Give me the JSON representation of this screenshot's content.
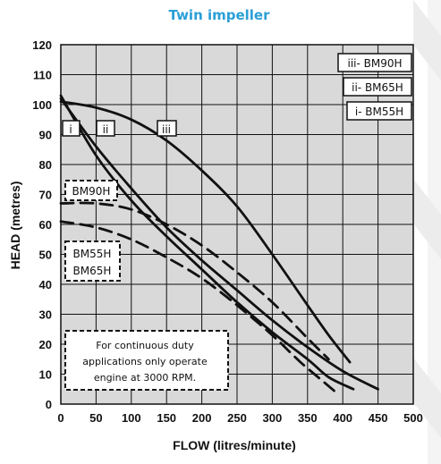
{
  "chart_data": {
    "type": "line",
    "title": "Twin impeller",
    "xlabel": "FLOW (litres/minute)",
    "ylabel": "HEAD (metres)",
    "xlim": [
      0,
      500
    ],
    "ylim": [
      0,
      120
    ],
    "xticks": [
      "0",
      "50",
      "100",
      "150",
      "200",
      "250",
      "300",
      "350",
      "400",
      "450",
      "500"
    ],
    "yticks": [
      "0",
      "10",
      "20",
      "30",
      "40",
      "50",
      "60",
      "70",
      "80",
      "90",
      "100",
      "110",
      "120"
    ],
    "grid": true,
    "legend_position": "top-right",
    "legend": [
      "iii- BM90H",
      "ii- BM65H",
      "i- BM55H"
    ],
    "curve_labels": [
      "i",
      "ii",
      "iii"
    ],
    "series": [
      {
        "name": "iii- BM90H",
        "style": "solid",
        "points": [
          [
            0,
            101
          ],
          [
            50,
            99
          ],
          [
            100,
            95
          ],
          [
            150,
            88
          ],
          [
            200,
            78
          ],
          [
            250,
            66
          ],
          [
            300,
            50
          ],
          [
            350,
            33
          ],
          [
            380,
            23
          ],
          [
            410,
            14
          ]
        ]
      },
      {
        "name": "ii- BM65H",
        "style": "solid",
        "points": [
          [
            0,
            102
          ],
          [
            50,
            86
          ],
          [
            100,
            72
          ],
          [
            150,
            59
          ],
          [
            200,
            48
          ],
          [
            250,
            38
          ],
          [
            300,
            28
          ],
          [
            350,
            19
          ],
          [
            400,
            11
          ],
          [
            450,
            5
          ]
        ]
      },
      {
        "name": "i- BM55H",
        "style": "solid",
        "points": [
          [
            0,
            103
          ],
          [
            50,
            83
          ],
          [
            100,
            68
          ],
          [
            150,
            56
          ],
          [
            200,
            45
          ],
          [
            250,
            34
          ],
          [
            300,
            24
          ],
          [
            350,
            15
          ],
          [
            380,
            9
          ],
          [
            415,
            5
          ]
        ]
      },
      {
        "name": "BM90H",
        "style": "dashed",
        "points": [
          [
            0,
            67
          ],
          [
            50,
            67
          ],
          [
            100,
            65
          ],
          [
            150,
            60
          ],
          [
            200,
            53
          ],
          [
            250,
            44
          ],
          [
            300,
            34
          ],
          [
            350,
            22
          ],
          [
            380,
            15
          ]
        ]
      },
      {
        "name": "BM55H BM65H",
        "style": "dashed",
        "points": [
          [
            0,
            61
          ],
          [
            50,
            59
          ],
          [
            100,
            55
          ],
          [
            150,
            49
          ],
          [
            200,
            42
          ],
          [
            250,
            33
          ],
          [
            300,
            23
          ],
          [
            340,
            14
          ],
          [
            375,
            7
          ],
          [
            395,
            3
          ]
        ]
      }
    ],
    "annotations": {
      "dashed_label_top": "BM90H",
      "dashed_label_bottom": [
        "BM55H",
        "BM65H"
      ],
      "note": [
        "For continuous duty",
        "applications only operate",
        "engine at 3000 RPM."
      ]
    }
  }
}
